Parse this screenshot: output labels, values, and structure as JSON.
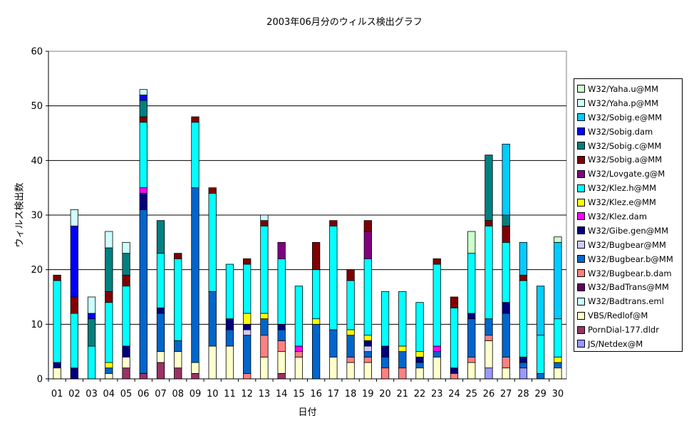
{
  "chart_data": {
    "type": "bar",
    "stacked": true,
    "title": "2003年06月分のウィルス検出グラフ",
    "xlabel": "日付",
    "ylabel": "ウィルス検出数",
    "ylim": [
      0,
      60
    ],
    "yticks": [
      0,
      10,
      20,
      30,
      40,
      50,
      60
    ],
    "grid": true,
    "legend_position": "right",
    "categories": [
      "01",
      "02",
      "03",
      "04",
      "05",
      "06",
      "07",
      "08",
      "09",
      "10",
      "11",
      "12",
      "13",
      "14",
      "15",
      "16",
      "17",
      "18",
      "19",
      "20",
      "21",
      "22",
      "23",
      "24",
      "25",
      "26",
      "27",
      "28",
      "29",
      "30"
    ],
    "series": [
      {
        "name": "JS/Netdex@M",
        "color": "#9999ff",
        "values": [
          0,
          0,
          0,
          0,
          0,
          0,
          0,
          0,
          0,
          0,
          0,
          0,
          0,
          0,
          0,
          0,
          0,
          0,
          0,
          0,
          0,
          0,
          0,
          0,
          0,
          2,
          0,
          2,
          0,
          0
        ]
      },
      {
        "name": "PornDial-177.dldr",
        "color": "#993366",
        "values": [
          0,
          0,
          0,
          0,
          2,
          1,
          3,
          2,
          1,
          0,
          0,
          0,
          0,
          1,
          0,
          0,
          0,
          0,
          0,
          0,
          0,
          0,
          0,
          0,
          0,
          0,
          0,
          0,
          0,
          0
        ]
      },
      {
        "name": "VBS/Redlof@M",
        "color": "#ffffcc",
        "values": [
          2,
          0,
          0,
          1,
          2,
          0,
          2,
          3,
          2,
          6,
          6,
          0,
          4,
          4,
          4,
          0,
          4,
          3,
          3,
          0,
          0,
          2,
          4,
          0,
          3,
          5,
          2,
          0,
          0,
          2
        ]
      },
      {
        "name": "W32/Badtrans.eml",
        "color": "#ccffff",
        "values": [
          0,
          0,
          0,
          0,
          0,
          0,
          0,
          0,
          0,
          0,
          0,
          0,
          0,
          0,
          0,
          0,
          0,
          0,
          0,
          0,
          0,
          0,
          0,
          0,
          0,
          0,
          0,
          0,
          0,
          0
        ]
      },
      {
        "name": "W32/BadTrans@MM",
        "color": "#660066",
        "values": [
          0,
          0,
          0,
          0,
          0,
          0,
          0,
          0,
          0,
          0,
          0,
          0,
          0,
          0,
          0,
          0,
          0,
          0,
          0,
          0,
          0,
          0,
          0,
          0,
          0,
          0,
          0,
          0,
          0,
          0
        ]
      },
      {
        "name": "W32/Bugbear.b.dam",
        "color": "#ff8080",
        "values": [
          0,
          0,
          0,
          0,
          0,
          0,
          0,
          0,
          0,
          0,
          0,
          1,
          4,
          2,
          1,
          0,
          0,
          1,
          1,
          2,
          2,
          0,
          0,
          1,
          1,
          1,
          2,
          0,
          0,
          0
        ]
      },
      {
        "name": "W32/Bugbear.b@MM",
        "color": "#0066cc",
        "values": [
          0,
          0,
          0,
          1,
          0,
          30,
          7,
          2,
          32,
          10,
          3,
          7,
          3,
          2,
          0,
          10,
          5,
          4,
          1,
          2,
          3,
          1,
          1,
          0,
          7,
          3,
          8,
          1,
          1,
          1
        ]
      },
      {
        "name": "W32/Bugbear@MM",
        "color": "#ccccff",
        "values": [
          0,
          0,
          0,
          0,
          0,
          0,
          0,
          0,
          0,
          0,
          0,
          1,
          0,
          0,
          0,
          0,
          0,
          0,
          1,
          0,
          0,
          0,
          0,
          0,
          0,
          0,
          0,
          0,
          0,
          0
        ]
      },
      {
        "name": "W32/Gibe.gen@MM",
        "color": "#000080",
        "values": [
          1,
          2,
          0,
          0,
          2,
          3,
          1,
          0,
          0,
          0,
          2,
          1,
          0,
          1,
          0,
          0,
          0,
          0,
          1,
          2,
          0,
          1,
          0,
          1,
          1,
          0,
          2,
          1,
          0,
          0
        ]
      },
      {
        "name": "W32/Klez.dam",
        "color": "#ff00ff",
        "values": [
          0,
          0,
          0,
          0,
          0,
          1,
          0,
          0,
          0,
          0,
          0,
          0,
          0,
          0,
          1,
          0,
          0,
          0,
          0,
          0,
          0,
          0,
          1,
          0,
          0,
          0,
          0,
          0,
          0,
          0
        ]
      },
      {
        "name": "W32/Klez.e@MM",
        "color": "#ffff00",
        "values": [
          0,
          0,
          0,
          1,
          0,
          0,
          0,
          0,
          0,
          0,
          0,
          2,
          1,
          0,
          0,
          1,
          0,
          1,
          1,
          0,
          1,
          1,
          0,
          0,
          0,
          0,
          0,
          0,
          0,
          1
        ]
      },
      {
        "name": "W32/Klez.h@MM",
        "color": "#00ffff",
        "values": [
          15,
          10,
          6,
          11,
          11,
          12,
          10,
          15,
          12,
          18,
          10,
          9,
          16,
          12,
          11,
          9,
          19,
          9,
          14,
          10,
          10,
          9,
          15,
          11,
          11,
          17,
          11,
          14,
          7,
          7
        ]
      },
      {
        "name": "W32/Lovgate.g@M",
        "color": "#800080",
        "values": [
          0,
          0,
          0,
          0,
          0,
          0,
          0,
          0,
          0,
          0,
          0,
          0,
          0,
          3,
          0,
          0,
          0,
          0,
          5,
          0,
          0,
          0,
          0,
          0,
          0,
          0,
          0,
          0,
          0,
          0
        ]
      },
      {
        "name": "W32/Sobig.a@MM",
        "color": "#800000",
        "values": [
          1,
          3,
          0,
          2,
          2,
          1,
          0,
          1,
          1,
          1,
          0,
          1,
          1,
          0,
          0,
          5,
          1,
          2,
          2,
          0,
          0,
          0,
          1,
          2,
          0,
          1,
          3,
          1,
          0,
          0
        ]
      },
      {
        "name": "W32/Sobig.c@MM",
        "color": "#008080",
        "values": [
          0,
          0,
          5,
          8,
          4,
          3,
          6,
          0,
          0,
          0,
          0,
          0,
          0,
          0,
          0,
          0,
          0,
          0,
          0,
          0,
          0,
          0,
          0,
          0,
          0,
          12,
          2,
          0,
          0,
          0
        ]
      },
      {
        "name": "W32/Sobig.dam",
        "color": "#0000ff",
        "values": [
          0,
          13,
          1,
          0,
          0,
          1,
          0,
          0,
          0,
          0,
          0,
          0,
          0,
          0,
          0,
          0,
          0,
          0,
          0,
          0,
          0,
          0,
          0,
          0,
          0,
          0,
          0,
          0,
          0,
          0
        ]
      },
      {
        "name": "W32/Sobig.e@MM",
        "color": "#00ccff",
        "values": [
          0,
          0,
          0,
          0,
          0,
          0,
          0,
          0,
          0,
          0,
          0,
          0,
          0,
          0,
          0,
          0,
          0,
          0,
          0,
          0,
          0,
          0,
          0,
          0,
          0,
          0,
          13,
          6,
          9,
          14
        ]
      },
      {
        "name": "W32/Yaha.p@MM",
        "color": "#ccffff",
        "values": [
          0,
          3,
          3,
          3,
          2,
          1,
          0,
          0,
          0,
          0,
          0,
          0,
          1,
          0,
          0,
          0,
          0,
          0,
          0,
          0,
          0,
          0,
          0,
          0,
          0,
          0,
          0,
          0,
          0,
          0
        ]
      },
      {
        "name": "W32/Yaha.u@MM",
        "color": "#ccffcc",
        "values": [
          0,
          0,
          0,
          0,
          0,
          0,
          0,
          0,
          0,
          0,
          0,
          0,
          0,
          0,
          0,
          0,
          0,
          0,
          0,
          0,
          0,
          0,
          0,
          0,
          4,
          0,
          0,
          0,
          0,
          1
        ]
      }
    ]
  }
}
